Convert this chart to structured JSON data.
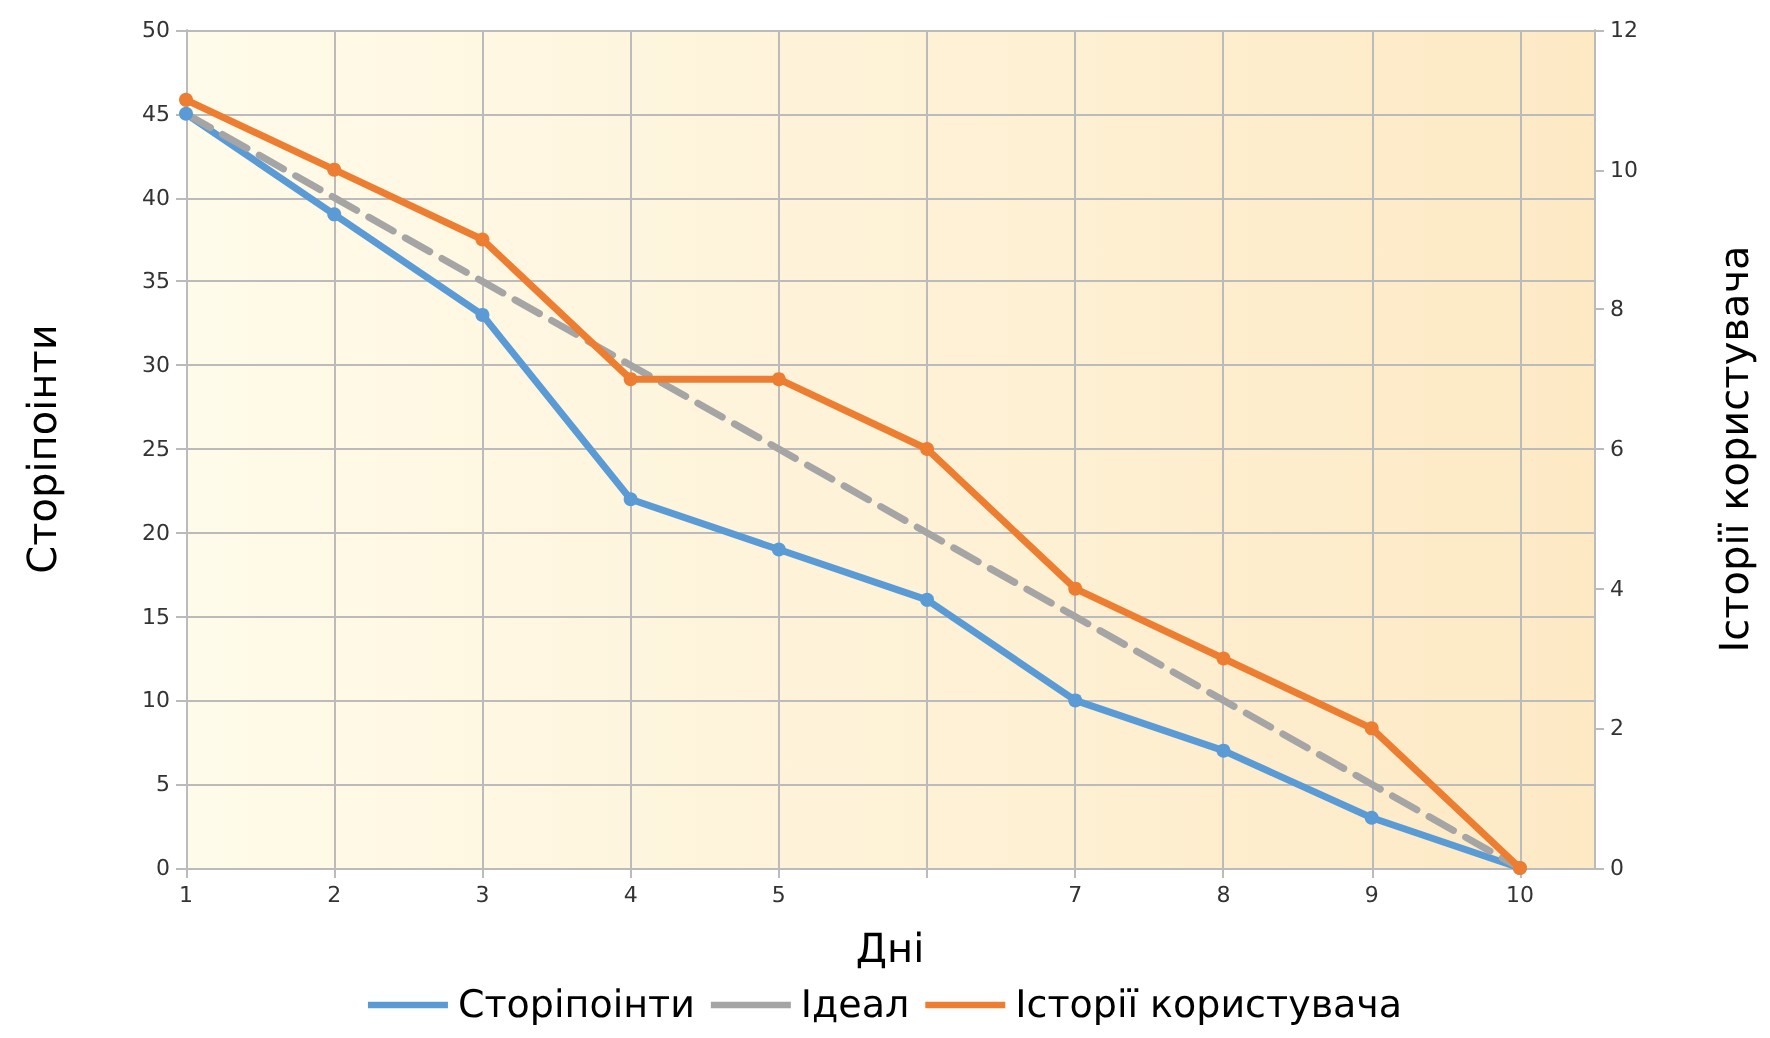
{
  "chart_data": {
    "type": "line",
    "xlabel": "Дні",
    "ylabel": "Сторіпоінти",
    "y2label": "Історії користувача",
    "x": [
      1,
      2,
      3,
      4,
      5,
      6,
      7,
      8,
      9,
      10
    ],
    "xlim": [
      1,
      10.5
    ],
    "xticks": [
      1,
      2,
      3,
      4,
      5,
      {
        "value": 6,
        "label": null
      },
      7,
      8,
      9,
      10
    ],
    "ylim": [
      0,
      50
    ],
    "yticks": [
      0,
      5,
      10,
      15,
      20,
      25,
      30,
      35,
      40,
      45,
      50
    ],
    "y2lim": [
      0,
      12
    ],
    "y2ticks": [
      0,
      2,
      4,
      6,
      8,
      10,
      12
    ],
    "series": [
      {
        "name": "Сторіпоінти",
        "color": "#5b9bd5",
        "marker": "circle",
        "line_style": "solid",
        "values": [
          45,
          39,
          33,
          22,
          19,
          16,
          10,
          7,
          3,
          0
        ]
      },
      {
        "name": "Ідеал",
        "color": "#a5a5a5",
        "marker": "none",
        "line_style": "dashed",
        "values": [
          45,
          40,
          35,
          30,
          25,
          20,
          15,
          10,
          5,
          0
        ]
      },
      {
        "name": "Історії користувача",
        "color": "#ed7d31",
        "marker": "circle",
        "line_style": "solid",
        "axis": "y2",
        "values": [
          11,
          10,
          9,
          7,
          7,
          6,
          4,
          3,
          2,
          0
        ]
      }
    ],
    "grid": true,
    "legend": "bottom"
  }
}
